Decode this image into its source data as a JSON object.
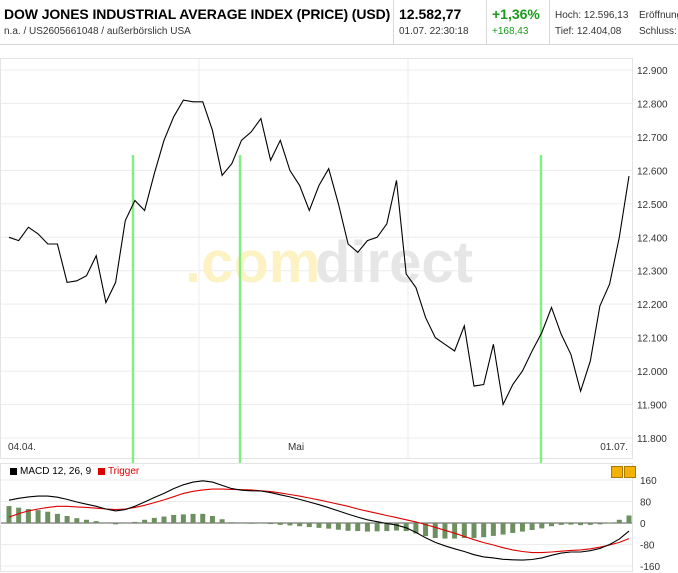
{
  "header": {
    "title": "DOW JONES INDUSTRIAL AVERAGE INDEX (PRICE) (USD)",
    "subtitle": "n.a. / US2605661048 / außerbörslich USA",
    "price": "12.582,77",
    "time": "01.07. 22:30:18",
    "change_pct": "+1,36%",
    "change_abs": "+168,43",
    "high_label": "Hoch: 12.596,13",
    "low_label": "Tief: 12.404,08",
    "open_label": "Eröffnung",
    "close_label": "Schluss:"
  },
  "watermark": {
    "text_a": ".com",
    "text_b": "direct"
  },
  "macd_legend": {
    "macd_label": "MACD 12, 26, 9",
    "trigger_label": "Trigger"
  },
  "colors": {
    "price_line": "#000000",
    "signal_lines": "#80ee80",
    "trigger": "#dd0000",
    "histogram": "#6e8f5f",
    "change_positive": "#1a9a1a"
  },
  "chart_data": [
    {
      "type": "line",
      "x_labels": [
        "04.04.",
        "Mai",
        "01.07."
      ],
      "ylim": [
        11800,
        12900
      ],
      "yticks": [
        11800,
        11900,
        12000,
        12100,
        12200,
        12300,
        12400,
        12500,
        12600,
        12700,
        12800,
        12900
      ],
      "ytick_labels": [
        "11.800",
        "11.900",
        "12.000",
        "12.100",
        "12.200",
        "12.300",
        "12.400",
        "12.500",
        "12.600",
        "12.700",
        "12.800",
        "12.900"
      ],
      "grid": true,
      "series": [
        {
          "values": [
            12400,
            12390,
            12430,
            12410,
            12380,
            12380,
            12265,
            12270,
            12285,
            12345,
            12205,
            12265,
            12450,
            12510,
            12480,
            12590,
            12690,
            12760,
            12810,
            12805,
            12805,
            12720,
            12585,
            12620,
            12690,
            12715,
            12755,
            12630,
            12690,
            12600,
            12555,
            12480,
            12555,
            12605,
            12500,
            12380,
            12355,
            12390,
            12400,
            12440,
            12570,
            12290,
            12250,
            12160,
            12100,
            12080,
            12060,
            12135,
            11955,
            11960,
            12080,
            11900,
            11960,
            12000,
            12060,
            12115,
            12190,
            12110,
            12050,
            11940,
            12030,
            12195,
            12260,
            12400,
            12583
          ]
        }
      ],
      "signal_markers": [
        {
          "date": "21.04."
        },
        {
          "date": "10.05."
        },
        {
          "date": "16.06."
        }
      ]
    },
    {
      "type": "line",
      "title": "MACD 12, 26, 9",
      "ylim": [
        -160,
        160
      ],
      "yticks": [
        -160,
        -80,
        0,
        80,
        160
      ],
      "ytick_labels": [
        "-160",
        "-80",
        "0",
        "80",
        "160"
      ],
      "series": [
        {
          "name": "MACD 12, 26, 9",
          "values": [
            85,
            92,
            97,
            100,
            100,
            96,
            88,
            78,
            70,
            62,
            52,
            45,
            50,
            62,
            78,
            95,
            110,
            128,
            142,
            152,
            157,
            152,
            140,
            128,
            122,
            120,
            119,
            113,
            105,
            97,
            88,
            78,
            68,
            57,
            45,
            33,
            22,
            12,
            5,
            -2,
            -8,
            -18,
            -35,
            -55,
            -72,
            -85,
            -96,
            -106,
            -118,
            -126,
            -130,
            -135,
            -137,
            -138,
            -136,
            -130,
            -120,
            -112,
            -108,
            -108,
            -103,
            -95,
            -80,
            -60,
            -30
          ]
        },
        {
          "name": "Trigger",
          "values": [
            22,
            35,
            45,
            52,
            58,
            62,
            62,
            60,
            58,
            55,
            52,
            50,
            52,
            58,
            66,
            76,
            86,
            98,
            110,
            118,
            123,
            126,
            126,
            125,
            124,
            123,
            120,
            117,
            112,
            106,
            100,
            93,
            86,
            78,
            70,
            62,
            52,
            44,
            36,
            28,
            20,
            12,
            4,
            -6,
            -16,
            -27,
            -38,
            -50,
            -62,
            -73,
            -82,
            -92,
            -100,
            -106,
            -110,
            -110,
            -108,
            -105,
            -102,
            -100,
            -96,
            -90,
            -82,
            -72,
            -58
          ]
        },
        {
          "name": "histogram",
          "values": [
            63,
            57,
            52,
            48,
            42,
            34,
            26,
            18,
            12,
            7,
            0,
            -5,
            -2,
            4,
            12,
            19,
            24,
            30,
            32,
            34,
            34,
            26,
            14,
            3,
            -2,
            -3,
            -1,
            -4,
            -7,
            -9,
            -12,
            -15,
            -18,
            -21,
            -25,
            -29,
            -30,
            -32,
            -31,
            -30,
            -28,
            -30,
            -39,
            -49,
            -56,
            -58,
            -58,
            -56,
            -56,
            -53,
            -48,
            -43,
            -37,
            -32,
            -26,
            -20,
            -12,
            -7,
            -6,
            -8,
            -7,
            -5,
            2,
            12,
            28
          ]
        }
      ]
    }
  ]
}
